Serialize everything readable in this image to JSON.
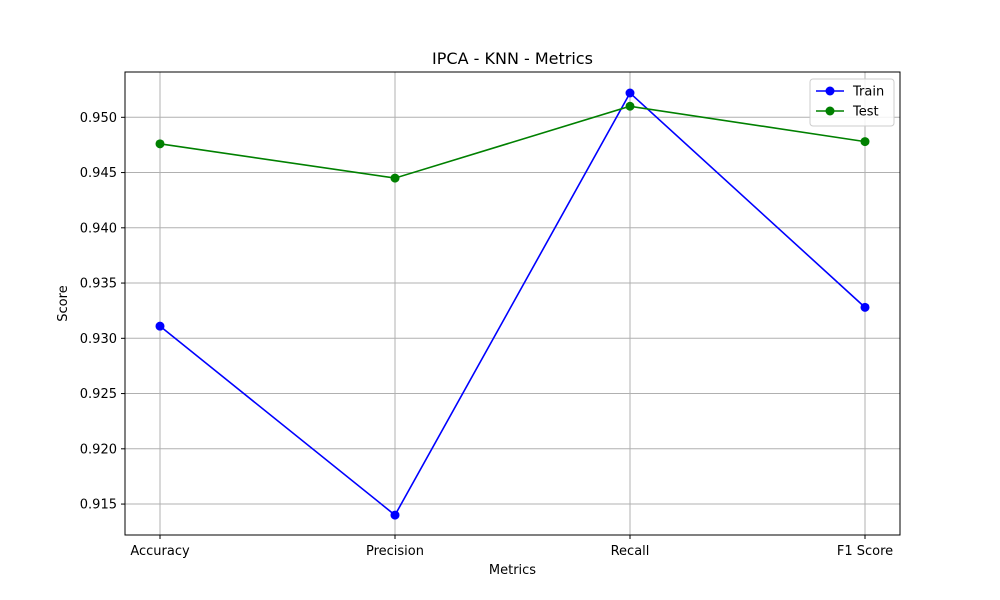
{
  "chart_data": {
    "type": "line",
    "title": "IPCA - KNN - Metrics",
    "xlabel": "Metrics",
    "ylabel": "Score",
    "categories": [
      "Accuracy",
      "Precision",
      "Recall",
      "F1 Score"
    ],
    "ylim": [
      0.9122,
      0.9541
    ],
    "yticks": [
      "0.915",
      "0.920",
      "0.925",
      "0.930",
      "0.935",
      "0.940",
      "0.945",
      "0.950"
    ],
    "grid": true,
    "legend_position": "top-right",
    "series": [
      {
        "name": "Train",
        "color": "#0000ff",
        "marker": "circle",
        "values": [
          0.9311,
          0.914,
          0.9522,
          0.9328
        ]
      },
      {
        "name": "Test",
        "color": "#008000",
        "marker": "circle",
        "values": [
          0.9476,
          0.9445,
          0.951,
          0.9478
        ]
      }
    ]
  }
}
